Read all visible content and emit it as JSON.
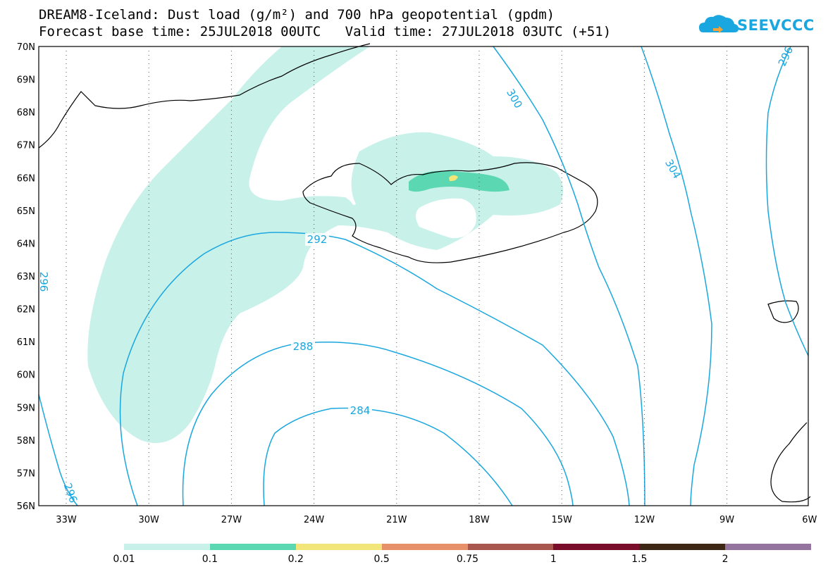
{
  "header": {
    "title_line1": "DREAM8-Iceland: Dust load (g/m²) and 700 hPa geopotential (gpdm)",
    "title_line2": "Forecast base time: 25JUL2018 00UTC   Valid time: 27JUL2018 03UTC (+51)"
  },
  "logo": {
    "text": "SEEVCCC",
    "icon": "cloud-logo-icon",
    "color": "#1aa7df"
  },
  "map": {
    "lat_labels": [
      "70N",
      "69N",
      "68N",
      "67N",
      "66N",
      "65N",
      "64N",
      "63N",
      "62N",
      "61N",
      "60N",
      "59N",
      "58N",
      "57N",
      "56N"
    ],
    "lon_labels": [
      "33W",
      "30W",
      "27W",
      "24W",
      "21W",
      "18W",
      "15W",
      "12W",
      "9W",
      "6W"
    ],
    "contour_labels": [
      "292",
      "288",
      "284",
      "296",
      "300",
      "304",
      "296",
      "296"
    ],
    "contour_color": "#1aa7df"
  },
  "legend": {
    "colors": [
      "#c8f1ea",
      "#5bd8b2",
      "#f2e67a",
      "#e8906a",
      "#a9564e",
      "#7a0d2a",
      "#3e2815",
      "#94739e"
    ],
    "labels": [
      "0.01",
      "0.1",
      "0.2",
      "0.5",
      "0.75",
      "1",
      "1.5",
      "2"
    ]
  }
}
